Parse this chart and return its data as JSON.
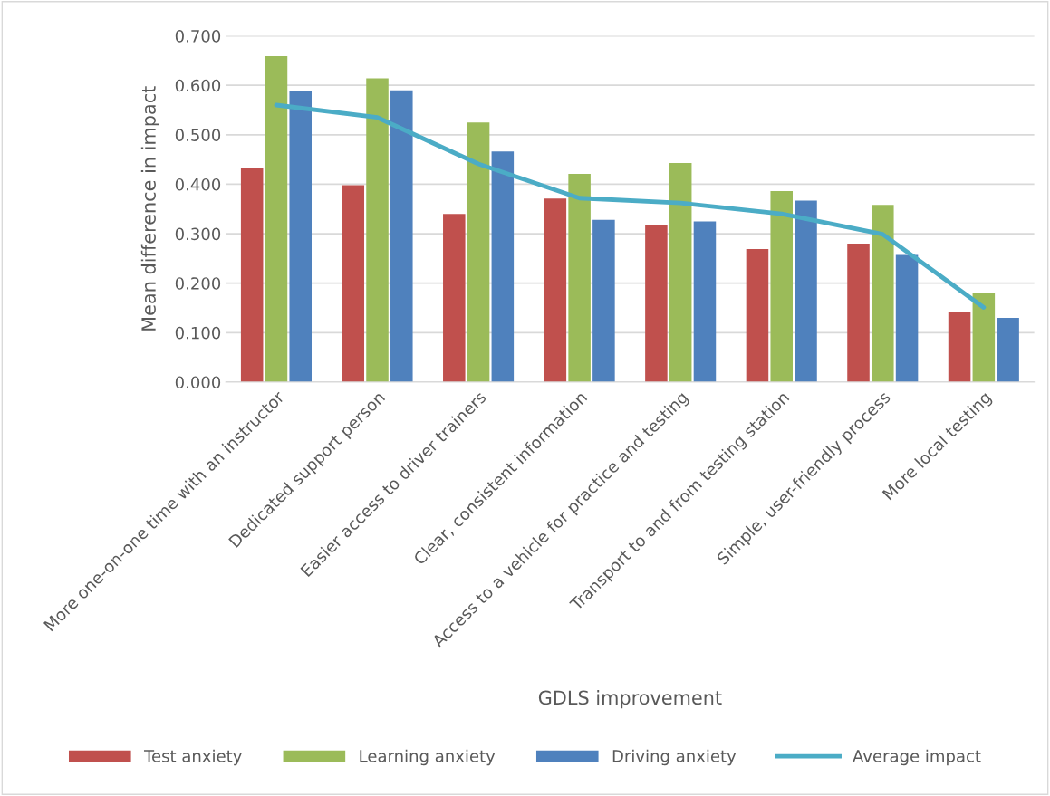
{
  "chart_data": {
    "type": "bar",
    "xlabel": "GDLS improvement",
    "ylabel": "Mean difference in impact",
    "categories": [
      "More one-on-one time with an instructor",
      "Dedicated support person",
      "Easier access to driver trainers",
      "Clear, consistent information",
      "Access to a vehicle for practice and testing",
      "Transport to and from testing station",
      "Simple, user-friendly process",
      "More local testing"
    ],
    "series": [
      {
        "name": "Test anxiety",
        "color": "#c0504d",
        "values": [
          0.432,
          0.398,
          0.34,
          0.371,
          0.318,
          0.269,
          0.28,
          0.141
        ]
      },
      {
        "name": "Learning anxiety",
        "color": "#9bbb59",
        "values": [
          0.659,
          0.614,
          0.525,
          0.421,
          0.443,
          0.386,
          0.358,
          0.181
        ]
      },
      {
        "name": "Driving anxiety",
        "color": "#4f81bd",
        "values": [
          0.589,
          0.59,
          0.466,
          0.328,
          0.325,
          0.367,
          0.257,
          0.13
        ]
      },
      {
        "name": "Average impact",
        "type": "line",
        "color": "#4bacc6",
        "values": [
          0.56,
          0.535,
          0.441,
          0.372,
          0.362,
          0.34,
          0.299,
          0.151
        ]
      }
    ],
    "ylim": [
      0,
      0.7
    ],
    "yticks": [
      {
        "value": 0,
        "label": "0.000"
      },
      {
        "value": 0.1,
        "label": "0.100"
      },
      {
        "value": 0.2,
        "label": "0.200"
      },
      {
        "value": 0.3,
        "label": "0.300"
      },
      {
        "value": 0.4,
        "label": "0.400"
      },
      {
        "value": 0.5,
        "label": "0.500"
      },
      {
        "value": 0.6,
        "label": "0.600"
      },
      {
        "value": 0.7,
        "label": "0.700"
      }
    ],
    "grid": "y",
    "legend": "bottom"
  }
}
